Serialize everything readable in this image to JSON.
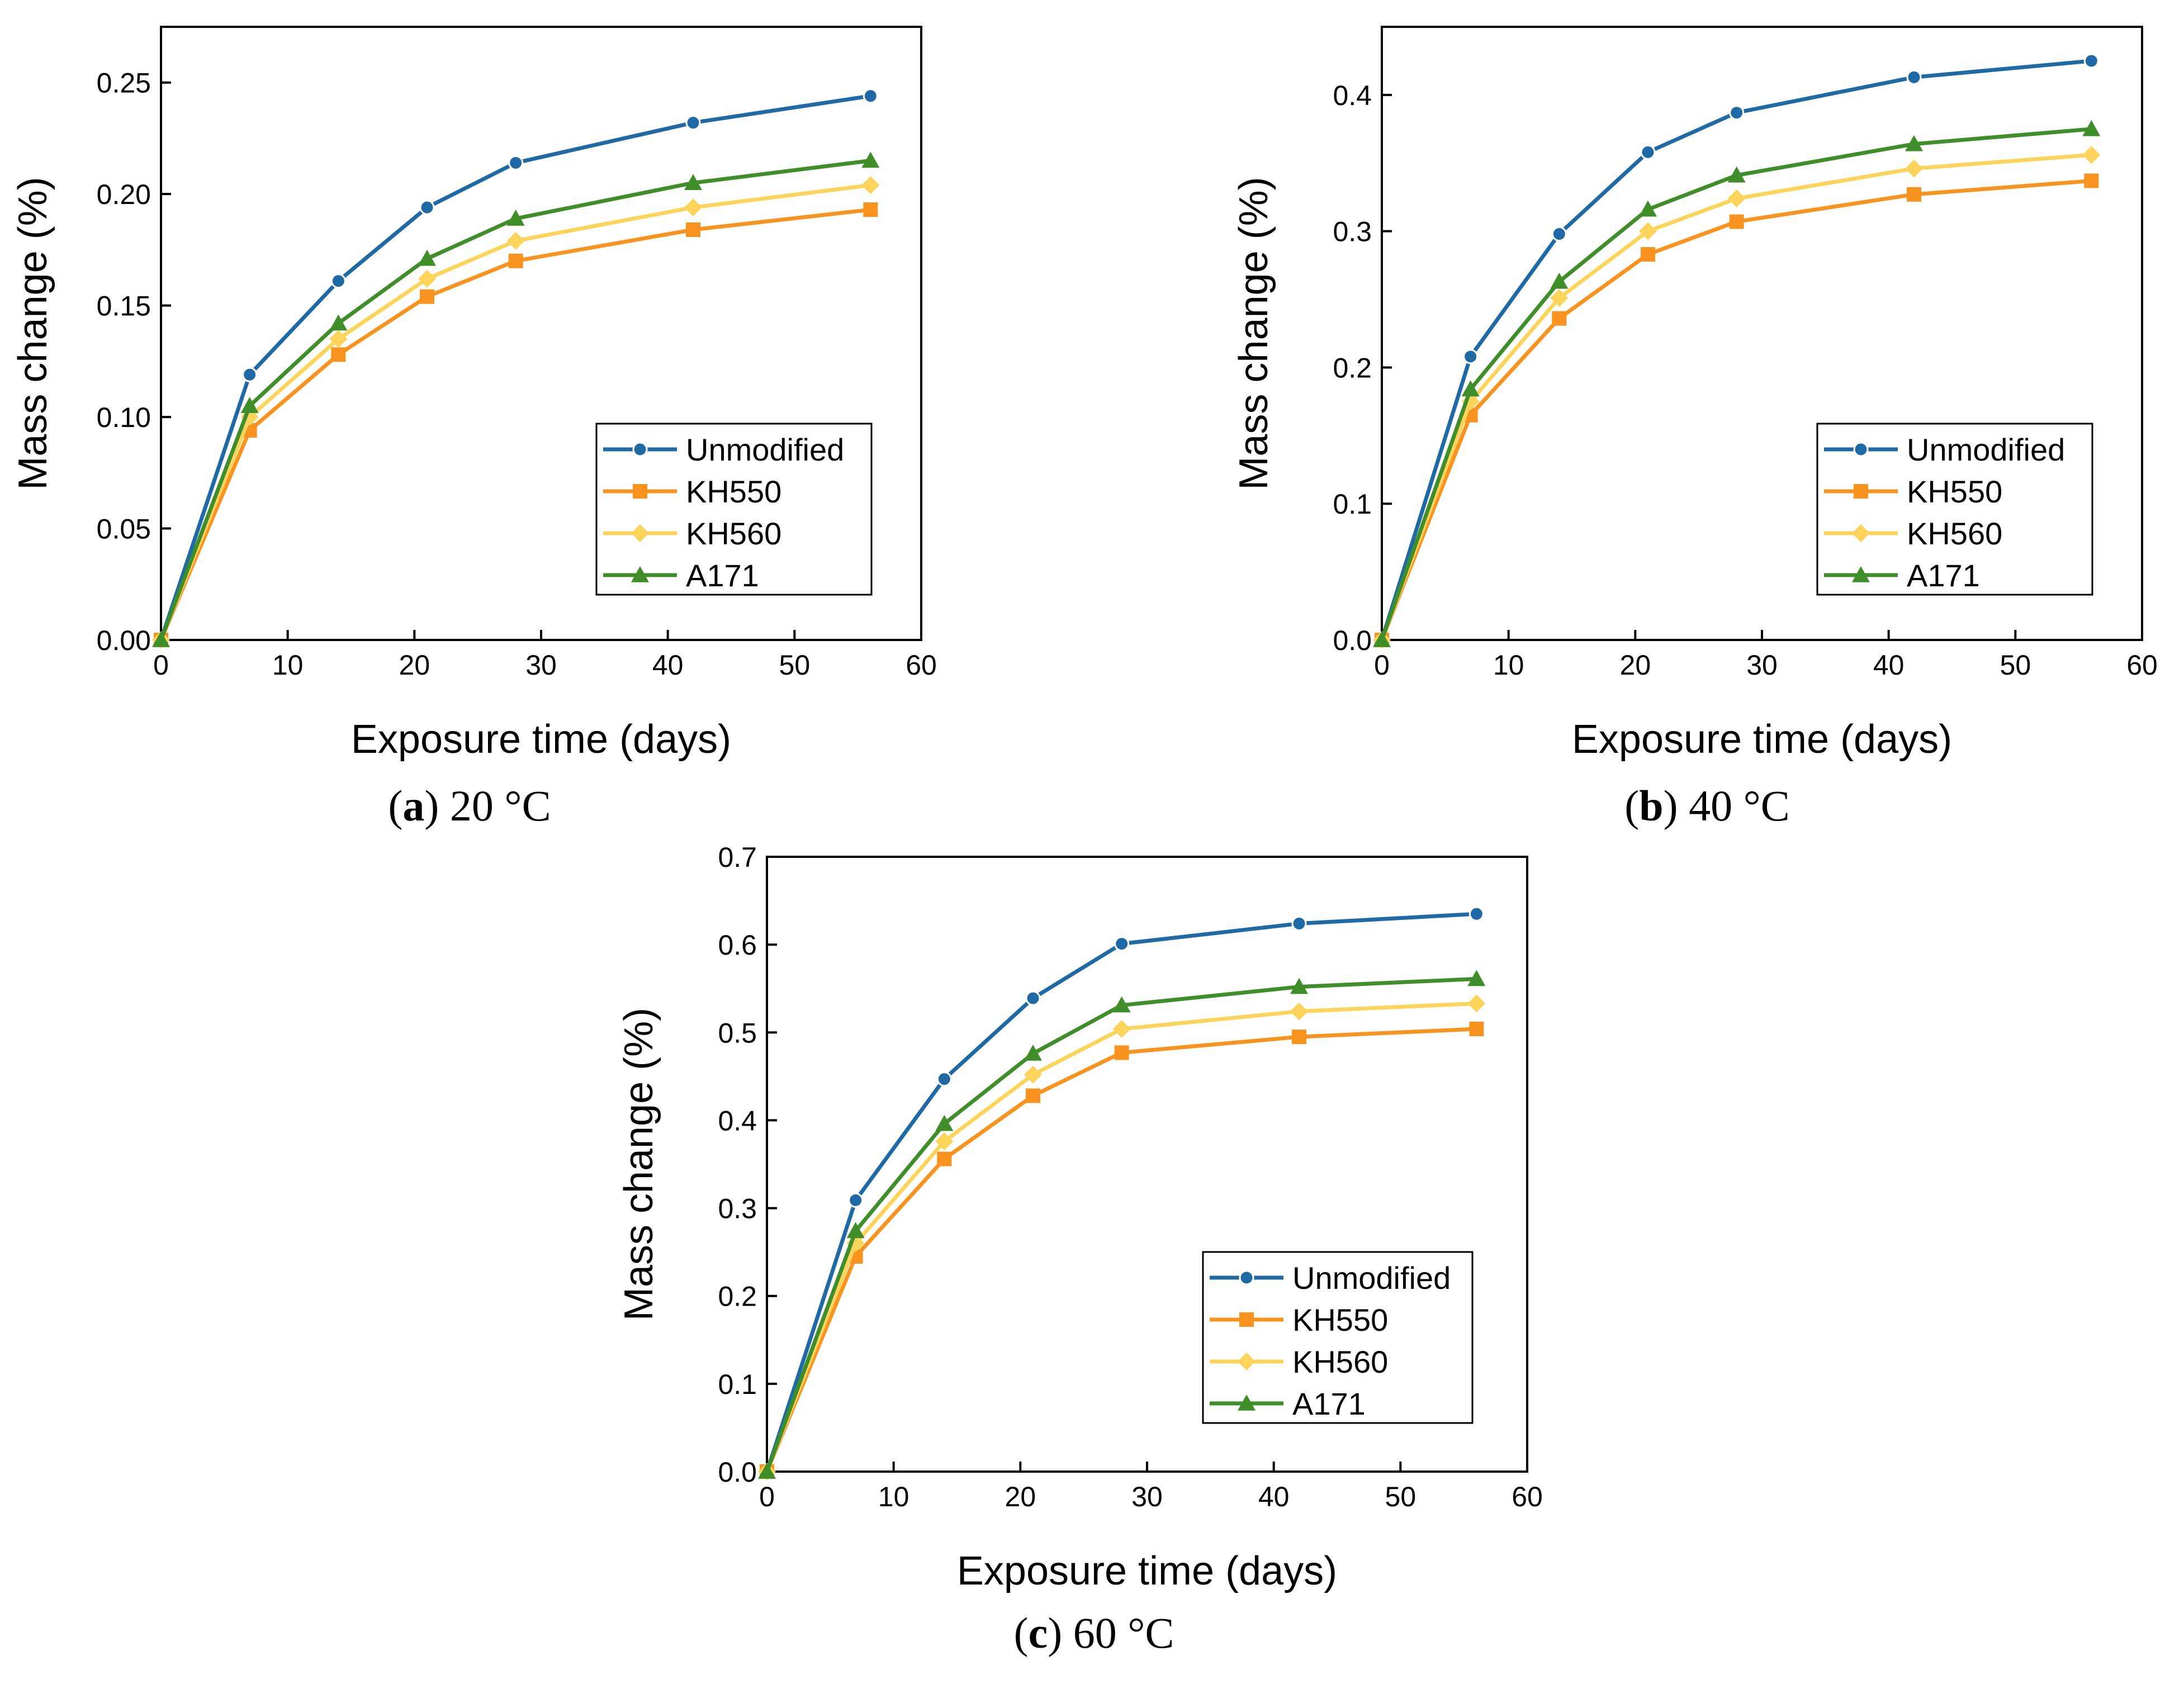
{
  "chart_data": [
    {
      "type": "line",
      "panel": "a",
      "caption_letter": "a",
      "caption_text": "20 °C",
      "xlabel": "Exposure time (days)",
      "ylabel": "Mass change (%)",
      "xlim": [
        0,
        60
      ],
      "ylim": [
        0,
        0.275
      ],
      "xticks": [
        0,
        10,
        20,
        30,
        40,
        50,
        60
      ],
      "xtick_labels": [
        "0",
        "10",
        "20",
        "30",
        "40",
        "50",
        "60"
      ],
      "yticks": [
        0,
        0.05,
        0.1,
        0.15,
        0.2,
        0.25
      ],
      "ytick_labels": [
        "0.00",
        "0.05",
        "0.10",
        "0.15",
        "0.20",
        "0.25"
      ],
      "legend_position": "lower-right",
      "x": [
        0,
        7,
        14,
        21,
        28,
        42,
        56
      ],
      "series": [
        {
          "name": "Unmodified",
          "color": "#1f6aa5",
          "marker": "circle",
          "values": [
            0,
            0.119,
            0.161,
            0.194,
            0.214,
            0.232,
            0.244
          ]
        },
        {
          "name": "KH550",
          "color": "#f7931e",
          "marker": "square",
          "values": [
            0,
            0.094,
            0.128,
            0.154,
            0.17,
            0.184,
            0.193
          ]
        },
        {
          "name": "KH560",
          "color": "#fcd45c",
          "marker": "diamond",
          "values": [
            0,
            0.1,
            0.135,
            0.162,
            0.179,
            0.194,
            0.204
          ]
        },
        {
          "name": "A171",
          "color": "#3f8e2a",
          "marker": "triangle",
          "values": [
            0,
            0.105,
            0.142,
            0.171,
            0.189,
            0.205,
            0.215
          ]
        }
      ]
    },
    {
      "type": "line",
      "panel": "b",
      "caption_letter": "b",
      "caption_text": "40 °C",
      "xlabel": "Exposure time (days)",
      "ylabel": "Mass change (%)",
      "xlim": [
        0,
        60
      ],
      "ylim": [
        0,
        0.45
      ],
      "xticks": [
        0,
        10,
        20,
        30,
        40,
        50,
        60
      ],
      "xtick_labels": [
        "0",
        "10",
        "20",
        "30",
        "40",
        "50",
        "60"
      ],
      "yticks": [
        0,
        0.1,
        0.2,
        0.3,
        0.4
      ],
      "ytick_labels": [
        "0.0",
        "0.1",
        "0.2",
        "0.3",
        "0.4"
      ],
      "legend_position": "lower-right",
      "x": [
        0,
        7,
        14,
        21,
        28,
        42,
        56
      ],
      "series": [
        {
          "name": "Unmodified",
          "color": "#1f6aa5",
          "marker": "circle",
          "values": [
            0,
            0.208,
            0.298,
            0.358,
            0.387,
            0.413,
            0.425
          ]
        },
        {
          "name": "KH550",
          "color": "#f7931e",
          "marker": "square",
          "values": [
            0,
            0.165,
            0.236,
            0.283,
            0.307,
            0.327,
            0.337
          ]
        },
        {
          "name": "KH560",
          "color": "#fcd45c",
          "marker": "diamond",
          "values": [
            0,
            0.175,
            0.251,
            0.3,
            0.324,
            0.346,
            0.356
          ]
        },
        {
          "name": "A171",
          "color": "#3f8e2a",
          "marker": "triangle",
          "values": [
            0,
            0.184,
            0.263,
            0.316,
            0.341,
            0.364,
            0.375
          ]
        }
      ]
    },
    {
      "type": "line",
      "panel": "c",
      "caption_letter": "c",
      "caption_text": "60 °C",
      "xlabel": "Exposure time (days)",
      "ylabel": "Mass change (%)",
      "xlim": [
        0,
        60
      ],
      "ylim": [
        0,
        0.7
      ],
      "xticks": [
        0,
        10,
        20,
        30,
        40,
        50,
        60
      ],
      "xtick_labels": [
        "0",
        "10",
        "20",
        "30",
        "40",
        "50",
        "60"
      ],
      "yticks": [
        0,
        0.1,
        0.2,
        0.3,
        0.4,
        0.5,
        0.6,
        0.7
      ],
      "ytick_labels": [
        "0.0",
        "0.1",
        "0.2",
        "0.3",
        "0.4",
        "0.5",
        "0.6",
        "0.7"
      ],
      "legend_position": "lower-right",
      "x": [
        0,
        7,
        14,
        21,
        28,
        42,
        56
      ],
      "series": [
        {
          "name": "Unmodified",
          "color": "#1f6aa5",
          "marker": "circle",
          "values": [
            0,
            0.309,
            0.447,
            0.539,
            0.601,
            0.624,
            0.635
          ]
        },
        {
          "name": "KH550",
          "color": "#f7931e",
          "marker": "square",
          "values": [
            0,
            0.245,
            0.356,
            0.428,
            0.477,
            0.495,
            0.504
          ]
        },
        {
          "name": "KH560",
          "color": "#fcd45c",
          "marker": "diamond",
          "values": [
            0,
            0.26,
            0.376,
            0.452,
            0.504,
            0.524,
            0.533
          ]
        },
        {
          "name": "A171",
          "color": "#3f8e2a",
          "marker": "triangle",
          "values": [
            0,
            0.274,
            0.396,
            0.476,
            0.531,
            0.552,
            0.561
          ]
        }
      ]
    }
  ]
}
